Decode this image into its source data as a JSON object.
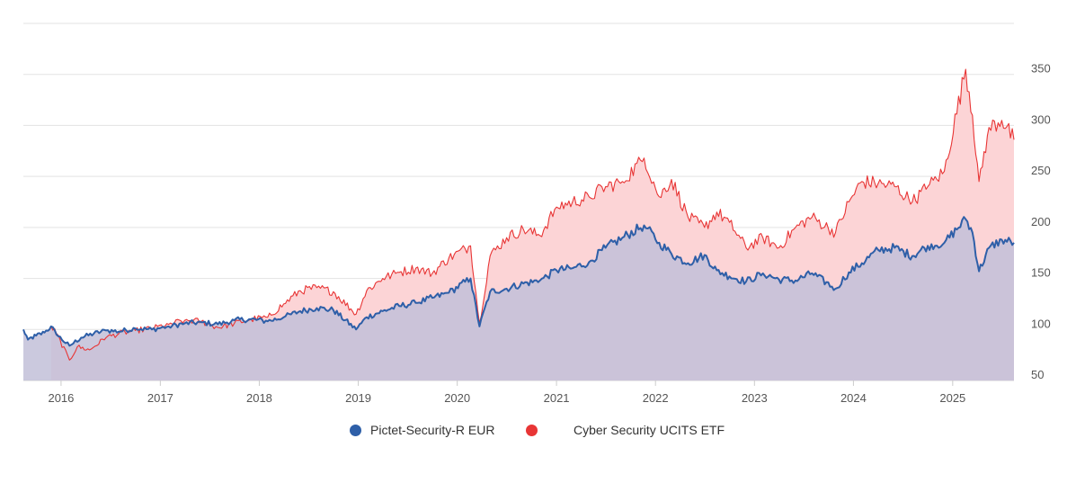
{
  "chart_data": {
    "type": "area",
    "title": "",
    "xlabel": "",
    "ylabel": "",
    "x_ticks": [
      "2016",
      "2017",
      "2018",
      "2019",
      "2020",
      "2021",
      "2022",
      "2023",
      "2024",
      "2025"
    ],
    "y_ticks": [
      50,
      100,
      150,
      200,
      250,
      300,
      350
    ],
    "xlim": [
      "2015-08-15",
      "2025-08-15"
    ],
    "ylim": [
      50,
      400
    ],
    "grid": true,
    "legend_position": "bottom",
    "series": [
      {
        "name": "Pictet-Security-R EUR",
        "color": "#2e5fa8",
        "area_color": "#cfdcef",
        "x": [
          "2015-08-15",
          "2015-09-01",
          "2015-10-01",
          "2015-11-01",
          "2015-11-25",
          "2015-12-15",
          "2016-02-01",
          "2016-03-15",
          "2016-05-01",
          "2016-06-15",
          "2016-08-01",
          "2016-10-01",
          "2016-12-01",
          "2017-02-01",
          "2017-04-01",
          "2017-06-01",
          "2017-08-01",
          "2017-10-01",
          "2017-12-01",
          "2018-02-01",
          "2018-04-01",
          "2018-06-01",
          "2018-08-01",
          "2018-10-01",
          "2018-12-24",
          "2019-02-01",
          "2019-04-01",
          "2019-06-01",
          "2019-08-01",
          "2019-10-01",
          "2019-12-01",
          "2020-02-19",
          "2020-03-23",
          "2020-05-01",
          "2020-07-01",
          "2020-09-01",
          "2020-11-01",
          "2021-01-01",
          "2021-03-01",
          "2021-05-01",
          "2021-07-01",
          "2021-09-01",
          "2021-11-20",
          "2022-01-15",
          "2022-03-01",
          "2022-05-01",
          "2022-07-01",
          "2022-08-15",
          "2022-10-01",
          "2022-12-01",
          "2023-02-01",
          "2023-04-01",
          "2023-06-01",
          "2023-08-01",
          "2023-10-27",
          "2023-12-15",
          "2024-02-01",
          "2024-04-01",
          "2024-06-01",
          "2024-08-05",
          "2024-10-01",
          "2024-12-01",
          "2025-02-18",
          "2025-03-15",
          "2025-04-08",
          "2025-05-15",
          "2025-07-01",
          "2025-08-15"
        ],
        "values": [
          100,
          90,
          94,
          97,
          103,
          95,
          84,
          92,
          96,
          99,
          98,
          101,
          100,
          103,
          106,
          107,
          105,
          109,
          110,
          108,
          112,
          118,
          121,
          119,
          100,
          112,
          118,
          123,
          126,
          131,
          136,
          150,
          103,
          137,
          140,
          145,
          148,
          158,
          160,
          166,
          180,
          190,
          202,
          185,
          174,
          165,
          173,
          158,
          152,
          147,
          155,
          149,
          148,
          155,
          140,
          156,
          165,
          178,
          180,
          172,
          182,
          185,
          208,
          195,
          157,
          180,
          188,
          185
        ]
      },
      {
        "name": "Cyber Security UCITS ETF",
        "color": "#e83535",
        "area_color": "#fcd4d6",
        "x": [
          "2015-11-25",
          "2015-12-15",
          "2016-02-01",
          "2016-03-01",
          "2016-04-15",
          "2016-06-15",
          "2016-08-01",
          "2016-10-01",
          "2016-12-01",
          "2017-02-01",
          "2017-04-01",
          "2017-06-01",
          "2017-08-01",
          "2017-10-01",
          "2017-12-01",
          "2018-02-01",
          "2018-04-01",
          "2018-06-01",
          "2018-08-01",
          "2018-10-01",
          "2018-12-24",
          "2019-02-01",
          "2019-04-01",
          "2019-06-01",
          "2019-08-01",
          "2019-10-01",
          "2019-12-01",
          "2020-02-19",
          "2020-03-23",
          "2020-05-01",
          "2020-07-01",
          "2020-09-01",
          "2020-11-01",
          "2021-01-01",
          "2021-03-01",
          "2021-05-01",
          "2021-07-01",
          "2021-09-01",
          "2021-11-20",
          "2022-01-15",
          "2022-03-01",
          "2022-05-01",
          "2022-07-01",
          "2022-08-15",
          "2022-10-01",
          "2022-12-01",
          "2023-02-01",
          "2023-04-01",
          "2023-06-01",
          "2023-08-01",
          "2023-10-27",
          "2023-12-15",
          "2024-02-01",
          "2024-04-01",
          "2024-06-01",
          "2024-08-05",
          "2024-10-01",
          "2024-12-01",
          "2025-02-18",
          "2025-03-15",
          "2025-04-08",
          "2025-05-15",
          "2025-07-01",
          "2025-08-15"
        ],
        "values": [
          103,
          96,
          70,
          83,
          80,
          92,
          96,
          99,
          101,
          105,
          109,
          108,
          102,
          106,
          110,
          112,
          125,
          138,
          141,
          137,
          115,
          138,
          150,
          156,
          160,
          155,
          170,
          182,
          106,
          172,
          190,
          198,
          192,
          220,
          225,
          230,
          240,
          245,
          268,
          230,
          247,
          210,
          200,
          215,
          205,
          180,
          190,
          180,
          200,
          210,
          195,
          225,
          245,
          243,
          240,
          225,
          240,
          255,
          355,
          310,
          245,
          298,
          305,
          286
        ]
      }
    ]
  }
}
